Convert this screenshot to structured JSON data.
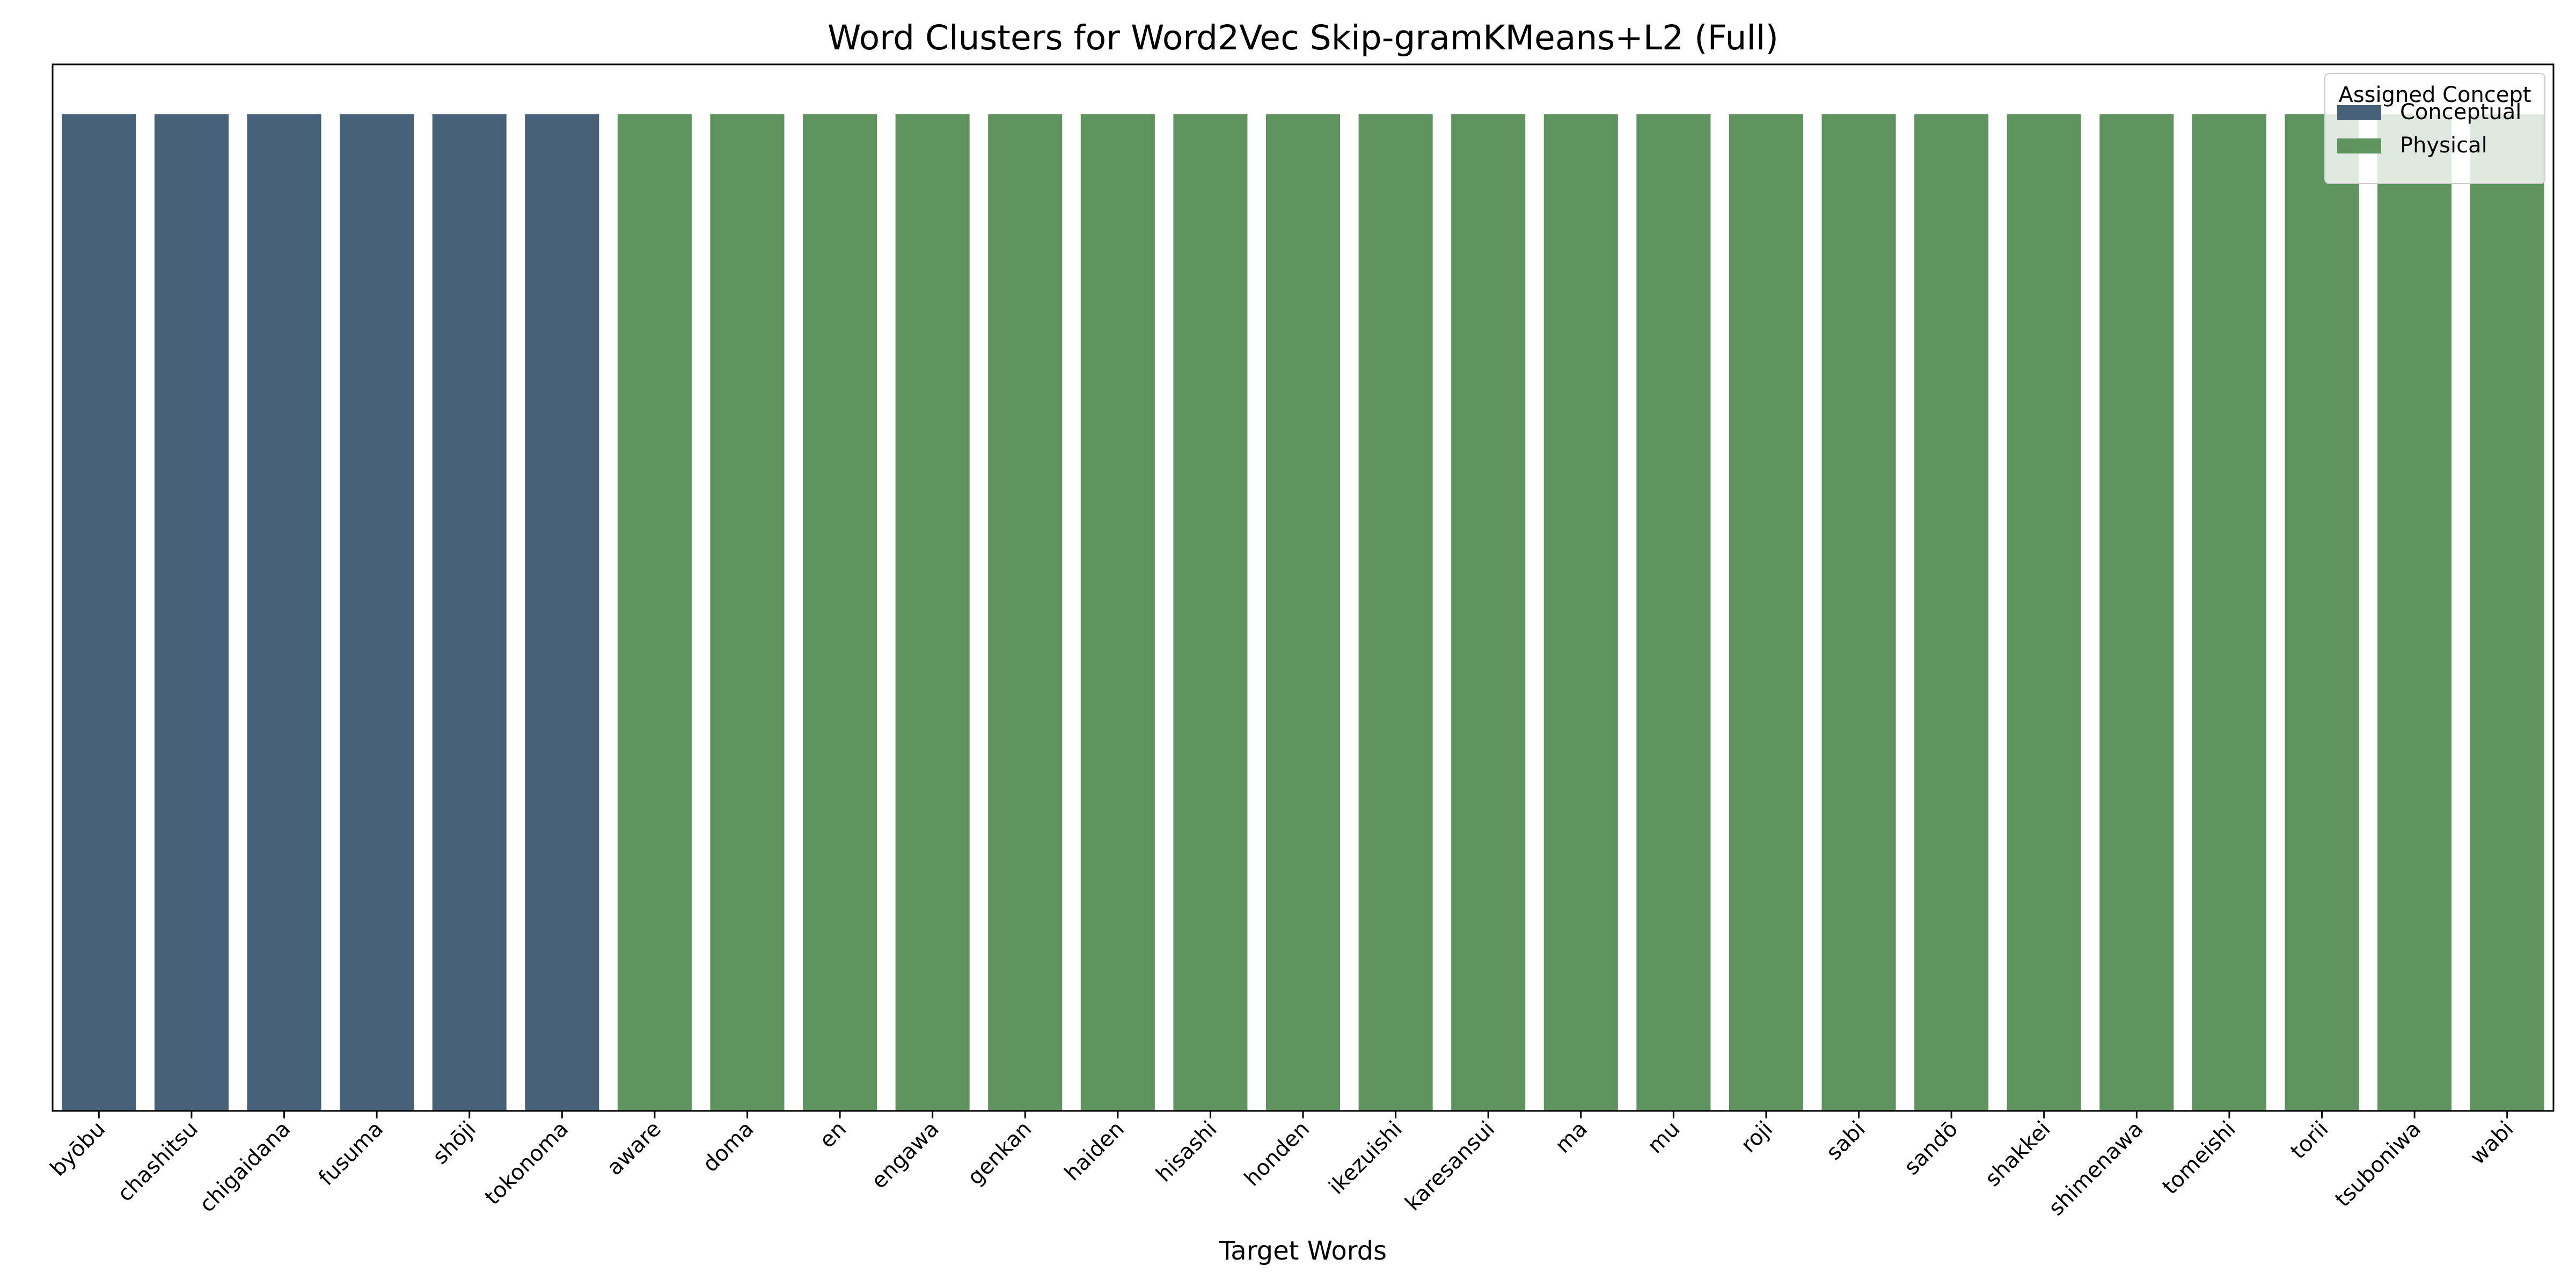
{
  "chart_data": {
    "type": "bar",
    "title": "Word Clusters for Word2Vec Skip-gramKMeans+L2 (Full)",
    "xlabel": "Target Words",
    "ylabel": "",
    "categories": [
      "byōbu",
      "chashitsu",
      "chigaidana",
      "fusuma",
      "shōji",
      "tokonoma",
      "aware",
      "doma",
      "en",
      "engawa",
      "genkan",
      "haiden",
      "hisashi",
      "honden",
      "ikezuishi",
      "karesansui",
      "ma",
      "mu",
      "roji",
      "sabi",
      "sandō",
      "shakkei",
      "shimenawa",
      "tomeishi",
      "torii",
      "tsuboniwa",
      "wabi"
    ],
    "values": [
      1,
      1,
      1,
      1,
      1,
      1,
      1,
      1,
      1,
      1,
      1,
      1,
      1,
      1,
      1,
      1,
      1,
      1,
      1,
      1,
      1,
      1,
      1,
      1,
      1,
      1,
      1
    ],
    "assigned": [
      "Conceptual",
      "Conceptual",
      "Conceptual",
      "Conceptual",
      "Conceptual",
      "Conceptual",
      "Physical",
      "Physical",
      "Physical",
      "Physical",
      "Physical",
      "Physical",
      "Physical",
      "Physical",
      "Physical",
      "Physical",
      "Physical",
      "Physical",
      "Physical",
      "Physical",
      "Physical",
      "Physical",
      "Physical",
      "Physical",
      "Physical",
      "Physical",
      "Physical"
    ],
    "ylim": [
      0,
      1.05
    ],
    "y_ticks_shown": false,
    "grid": false,
    "legend": {
      "title": "Assigned Concept",
      "placement": "top-right",
      "entries": [
        {
          "name": "Conceptual",
          "color": "#466178"
        },
        {
          "name": "Physical",
          "color": "#5e935e"
        }
      ]
    }
  }
}
